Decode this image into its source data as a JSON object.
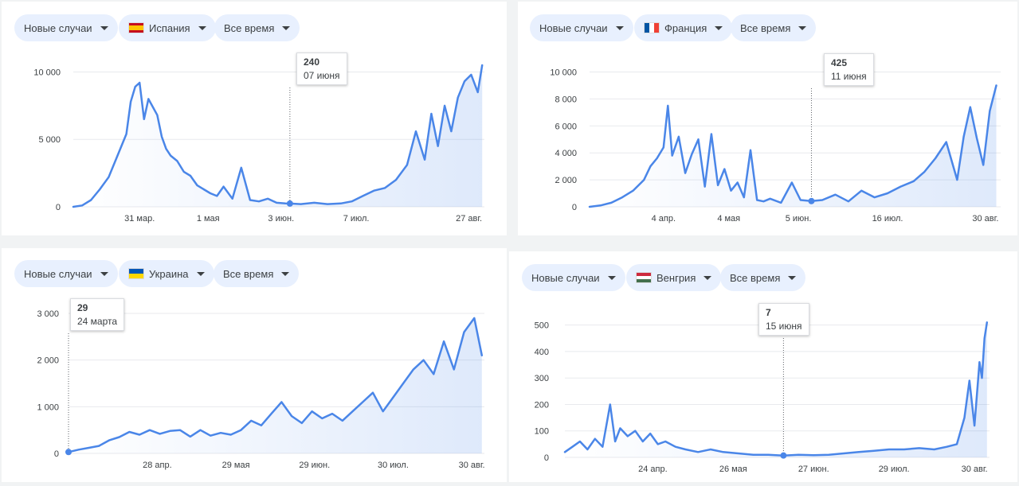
{
  "filters": {
    "metric_label": "Новые случаи",
    "period_label": "Все время"
  },
  "colors": {
    "line": "#4a86e8",
    "chip_bg": "#e8f0fe",
    "grid": "#e8eaed"
  },
  "charts": [
    {
      "country_label": "Испания",
      "flag_icon": "spain-flag-icon",
      "flag_colors": [
        "#c60b1e",
        "#ffc400",
        "#c60b1e"
      ],
      "flag_dir": "h3",
      "tooltip_value": "240",
      "tooltip_date": "07 июня"
    },
    {
      "country_label": "Франция",
      "flag_icon": "france-flag-icon",
      "flag_colors": [
        "#0055a4",
        "#ffffff",
        "#ef4135"
      ],
      "flag_dir": "v3",
      "tooltip_value": "425",
      "tooltip_date": "11 июня"
    },
    {
      "country_label": "Украина",
      "flag_icon": "ukraine-flag-icon",
      "flag_colors": [
        "#0057b7",
        "#ffd700"
      ],
      "flag_dir": "h2",
      "tooltip_value": "29",
      "tooltip_date": "24 марта"
    },
    {
      "country_label": "Венгрия",
      "flag_icon": "hungary-flag-icon",
      "flag_colors": [
        "#cd2a3e",
        "#ffffff",
        "#436f4d"
      ],
      "flag_dir": "h3",
      "tooltip_value": "7",
      "tooltip_date": "15 июня"
    }
  ],
  "chart_data": [
    {
      "type": "area",
      "title": "",
      "x_start": "2020-03-01",
      "ylim": [
        0,
        10500
      ],
      "y_ticks": [
        0,
        5000,
        10000
      ],
      "y_tick_labels": [
        "0",
        "5 000",
        "10 000"
      ],
      "x_ticks": [
        {
          "x": "2020-03-31",
          "label": "31 мар."
        },
        {
          "x": "2020-05-01",
          "label": "1 мая"
        },
        {
          "x": "2020-06-03",
          "label": "3 июн."
        },
        {
          "x": "2020-07-07",
          "label": "7 июл."
        },
        {
          "x": "2020-08-27",
          "label": "27 авг."
        }
      ],
      "x_end": "2020-09-03",
      "highlight": {
        "x": "2020-06-07",
        "y": 240
      },
      "x": [
        "2020-03-01",
        "2020-03-05",
        "2020-03-09",
        "2020-03-13",
        "2020-03-17",
        "2020-03-21",
        "2020-03-25",
        "2020-03-27",
        "2020-03-29",
        "2020-03-31",
        "2020-04-02",
        "2020-04-04",
        "2020-04-06",
        "2020-04-08",
        "2020-04-10",
        "2020-04-12",
        "2020-04-14",
        "2020-04-17",
        "2020-04-20",
        "2020-04-23",
        "2020-04-26",
        "2020-04-29",
        "2020-05-02",
        "2020-05-05",
        "2020-05-08",
        "2020-05-12",
        "2020-05-16",
        "2020-05-20",
        "2020-05-24",
        "2020-05-28",
        "2020-06-01",
        "2020-06-05",
        "2020-06-07",
        "2020-06-12",
        "2020-06-18",
        "2020-06-24",
        "2020-06-30",
        "2020-07-05",
        "2020-07-10",
        "2020-07-15",
        "2020-07-20",
        "2020-07-25",
        "2020-07-30",
        "2020-08-03",
        "2020-08-07",
        "2020-08-10",
        "2020-08-13",
        "2020-08-16",
        "2020-08-19",
        "2020-08-22",
        "2020-08-25",
        "2020-08-28",
        "2020-08-31",
        "2020-09-02"
      ],
      "values": [
        0,
        100,
        500,
        1300,
        2200,
        3800,
        5400,
        7800,
        8900,
        9200,
        6500,
        8000,
        7400,
        6800,
        5200,
        4300,
        3800,
        3400,
        2600,
        2300,
        1600,
        1300,
        1000,
        800,
        1500,
        600,
        2900,
        500,
        400,
        600,
        300,
        250,
        240,
        200,
        300,
        200,
        250,
        400,
        800,
        1200,
        1400,
        2000,
        3100,
        5600,
        3500,
        6900,
        4500,
        7500,
        5600,
        8100,
        9300,
        9800,
        8500,
        10500
      ]
    },
    {
      "type": "area",
      "title": "",
      "x_start": "2020-03-01",
      "ylim": [
        0,
        10500
      ],
      "y_ticks": [
        0,
        2000,
        4000,
        6000,
        8000,
        10000
      ],
      "y_tick_labels": [
        "0",
        "2 000",
        "4 000",
        "6 000",
        "8 000",
        "10 000"
      ],
      "x_ticks": [
        {
          "x": "2020-04-04",
          "label": "4 апр."
        },
        {
          "x": "2020-05-04",
          "label": "4 мая"
        },
        {
          "x": "2020-06-05",
          "label": "5 июн."
        },
        {
          "x": "2020-07-16",
          "label": "16 июл."
        },
        {
          "x": "2020-08-30",
          "label": "30 авг."
        }
      ],
      "x_end": "2020-09-06",
      "highlight": {
        "x": "2020-06-11",
        "y": 425
      },
      "x": [
        "2020-03-01",
        "2020-03-06",
        "2020-03-11",
        "2020-03-16",
        "2020-03-21",
        "2020-03-26",
        "2020-03-29",
        "2020-04-01",
        "2020-04-04",
        "2020-04-06",
        "2020-04-08",
        "2020-04-11",
        "2020-04-14",
        "2020-04-17",
        "2020-04-20",
        "2020-04-23",
        "2020-04-26",
        "2020-04-29",
        "2020-05-02",
        "2020-05-05",
        "2020-05-08",
        "2020-05-11",
        "2020-05-14",
        "2020-05-17",
        "2020-05-20",
        "2020-05-23",
        "2020-05-28",
        "2020-06-02",
        "2020-06-06",
        "2020-06-11",
        "2020-06-16",
        "2020-06-22",
        "2020-06-28",
        "2020-07-04",
        "2020-07-10",
        "2020-07-16",
        "2020-07-22",
        "2020-07-28",
        "2020-08-02",
        "2020-08-07",
        "2020-08-12",
        "2020-08-17",
        "2020-08-20",
        "2020-08-23",
        "2020-08-26",
        "2020-08-29",
        "2020-09-01",
        "2020-09-04"
      ],
      "values": [
        0,
        100,
        300,
        700,
        1200,
        2000,
        3000,
        3600,
        4400,
        7500,
        3800,
        5200,
        2500,
        3900,
        5000,
        1500,
        5400,
        1600,
        2800,
        1200,
        1800,
        700,
        4200,
        500,
        400,
        600,
        300,
        1800,
        500,
        425,
        500,
        900,
        400,
        1200,
        700,
        1000,
        1500,
        1900,
        2600,
        3600,
        4800,
        2000,
        5200,
        7400,
        5100,
        3100,
        7100,
        9000
      ]
    },
    {
      "type": "area",
      "title": "",
      "x_start": "2020-03-24",
      "ylim": [
        0,
        3000
      ],
      "y_ticks": [
        0,
        1000,
        2000,
        3000
      ],
      "y_tick_labels": [
        "0",
        "1 000",
        "2 000",
        "3 000"
      ],
      "x_ticks": [
        {
          "x": "2020-04-28",
          "label": "28 апр."
        },
        {
          "x": "2020-05-29",
          "label": "29 мая"
        },
        {
          "x": "2020-06-29",
          "label": "29 июн."
        },
        {
          "x": "2020-07-30",
          "label": "30 июл."
        },
        {
          "x": "2020-08-30",
          "label": "30 авг."
        }
      ],
      "x_end": "2020-09-04",
      "highlight": {
        "x": "2020-03-24",
        "y": 29
      },
      "x": [
        "2020-03-24",
        "2020-03-28",
        "2020-04-01",
        "2020-04-05",
        "2020-04-09",
        "2020-04-13",
        "2020-04-17",
        "2020-04-21",
        "2020-04-25",
        "2020-04-29",
        "2020-05-03",
        "2020-05-07",
        "2020-05-11",
        "2020-05-15",
        "2020-05-19",
        "2020-05-23",
        "2020-05-27",
        "2020-05-31",
        "2020-06-04",
        "2020-06-08",
        "2020-06-12",
        "2020-06-16",
        "2020-06-20",
        "2020-06-24",
        "2020-06-28",
        "2020-07-02",
        "2020-07-06",
        "2020-07-10",
        "2020-07-14",
        "2020-07-18",
        "2020-07-22",
        "2020-07-26",
        "2020-07-30",
        "2020-08-03",
        "2020-08-07",
        "2020-08-11",
        "2020-08-15",
        "2020-08-19",
        "2020-08-23",
        "2020-08-27",
        "2020-08-31",
        "2020-09-03"
      ],
      "values": [
        29,
        80,
        120,
        160,
        280,
        350,
        460,
        400,
        500,
        420,
        480,
        500,
        360,
        500,
        380,
        440,
        400,
        500,
        700,
        600,
        850,
        1100,
        800,
        650,
        900,
        750,
        850,
        700,
        900,
        1100,
        1300,
        900,
        1200,
        1500,
        1800,
        2000,
        1700,
        2400,
        1800,
        2600,
        2900,
        2100
      ]
    },
    {
      "type": "area",
      "title": "",
      "x_start": "2020-03-20",
      "ylim": [
        0,
        520
      ],
      "y_ticks": [
        0,
        100,
        200,
        300,
        400,
        500
      ],
      "y_tick_labels": [
        "0",
        "100",
        "200",
        "300",
        "400",
        "500"
      ],
      "x_ticks": [
        {
          "x": "2020-04-24",
          "label": "24 апр."
        },
        {
          "x": "2020-05-26",
          "label": "26 мая"
        },
        {
          "x": "2020-06-27",
          "label": "27 июн."
        },
        {
          "x": "2020-07-29",
          "label": "29 июл."
        },
        {
          "x": "2020-08-30",
          "label": "30 авг."
        }
      ],
      "x_end": "2020-09-05",
      "highlight": {
        "x": "2020-06-15",
        "y": 7
      },
      "x": [
        "2020-03-20",
        "2020-03-23",
        "2020-03-26",
        "2020-03-29",
        "2020-04-01",
        "2020-04-04",
        "2020-04-07",
        "2020-04-09",
        "2020-04-11",
        "2020-04-14",
        "2020-04-17",
        "2020-04-20",
        "2020-04-23",
        "2020-04-26",
        "2020-04-29",
        "2020-05-03",
        "2020-05-07",
        "2020-05-12",
        "2020-05-17",
        "2020-05-22",
        "2020-05-28",
        "2020-06-03",
        "2020-06-09",
        "2020-06-15",
        "2020-06-21",
        "2020-06-27",
        "2020-07-03",
        "2020-07-09",
        "2020-07-15",
        "2020-07-21",
        "2020-07-27",
        "2020-08-02",
        "2020-08-08",
        "2020-08-14",
        "2020-08-19",
        "2020-08-23",
        "2020-08-26",
        "2020-08-28",
        "2020-08-30",
        "2020-09-01",
        "2020-09-02",
        "2020-09-03",
        "2020-09-04"
      ],
      "values": [
        20,
        40,
        60,
        30,
        70,
        40,
        200,
        60,
        110,
        80,
        100,
        60,
        90,
        50,
        60,
        40,
        30,
        20,
        30,
        20,
        15,
        10,
        10,
        7,
        10,
        8,
        10,
        15,
        20,
        25,
        30,
        30,
        35,
        30,
        40,
        50,
        150,
        290,
        120,
        360,
        300,
        450,
        510
      ]
    }
  ]
}
